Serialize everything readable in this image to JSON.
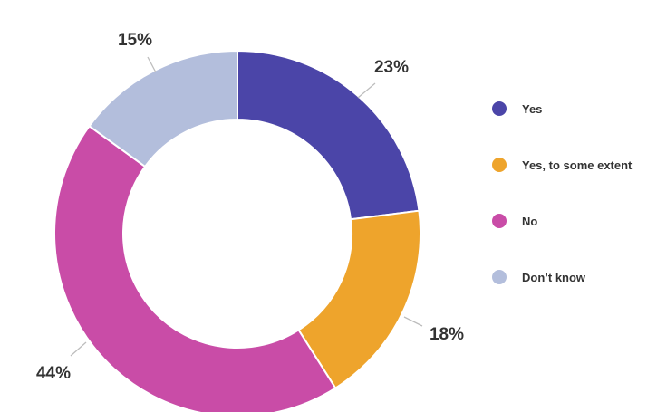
{
  "chart_data": {
    "type": "pie",
    "donut": true,
    "title": "",
    "legend_position": "right",
    "slices": [
      {
        "label": "Yes",
        "value": 23,
        "value_label": "23%",
        "color": "#4b45a8"
      },
      {
        "label": "Yes, to some extent",
        "value": 18,
        "value_label": "18%",
        "color": "#eea42c"
      },
      {
        "label": "No",
        "value": 44,
        "value_label": "44%",
        "color": "#c94ca7"
      },
      {
        "label": "Don’t know",
        "value": 15,
        "value_label": "15%",
        "color": "#b3bedc"
      }
    ]
  }
}
